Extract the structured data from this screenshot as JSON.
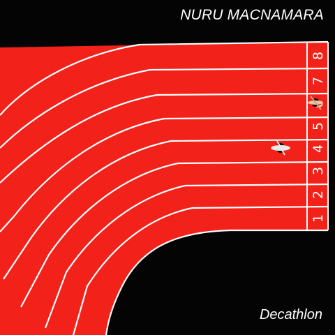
{
  "cover": {
    "artist": "NURU MACNAMARA",
    "album": "Decathlon",
    "lane_numbers": [
      "1",
      "2",
      "3",
      "4",
      "5",
      "6",
      "7",
      "8"
    ],
    "colors": {
      "background": "#040404",
      "track": "#f2211a",
      "lines": "#ffffff",
      "text": "#ffffff"
    }
  }
}
